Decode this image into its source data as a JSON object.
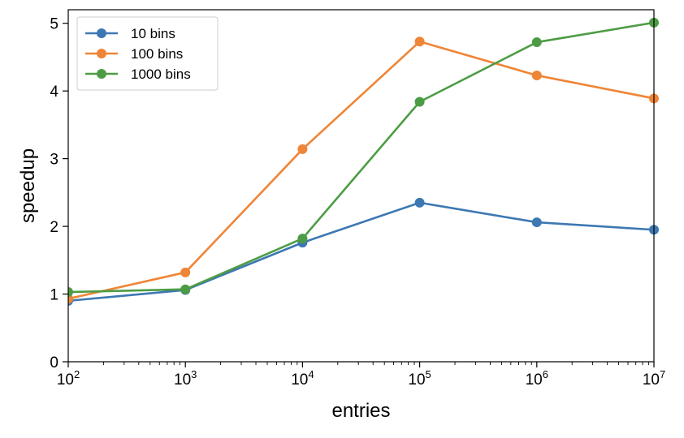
{
  "chart_data": {
    "type": "line",
    "xscale": "log",
    "x": [
      100,
      1000,
      10000,
      100000,
      1000000,
      10000000
    ],
    "xlim": [
      100,
      10000000
    ],
    "ylim": [
      0,
      5.2
    ],
    "xlabel": "entries",
    "ylabel": "speedup",
    "x_ticks": [
      {
        "base": "10",
        "exp": "2"
      },
      {
        "base": "10",
        "exp": "3"
      },
      {
        "base": "10",
        "exp": "4"
      },
      {
        "base": "10",
        "exp": "5"
      },
      {
        "base": "10",
        "exp": "6"
      },
      {
        "base": "10",
        "exp": "7"
      }
    ],
    "y_ticks": [
      0,
      1,
      2,
      3,
      4,
      5
    ],
    "legend_position": "top-left",
    "series": [
      {
        "name": "10 bins",
        "color": "#3d78b3",
        "values": [
          0.9,
          1.06,
          1.76,
          2.35,
          2.06,
          1.95
        ]
      },
      {
        "name": "100 bins",
        "color": "#ef8536",
        "values": [
          0.93,
          1.32,
          3.14,
          4.73,
          4.23,
          3.89
        ]
      },
      {
        "name": "1000 bins",
        "color": "#4d9c45",
        "values": [
          1.03,
          1.07,
          1.82,
          3.84,
          4.72,
          5.01
        ]
      }
    ]
  }
}
